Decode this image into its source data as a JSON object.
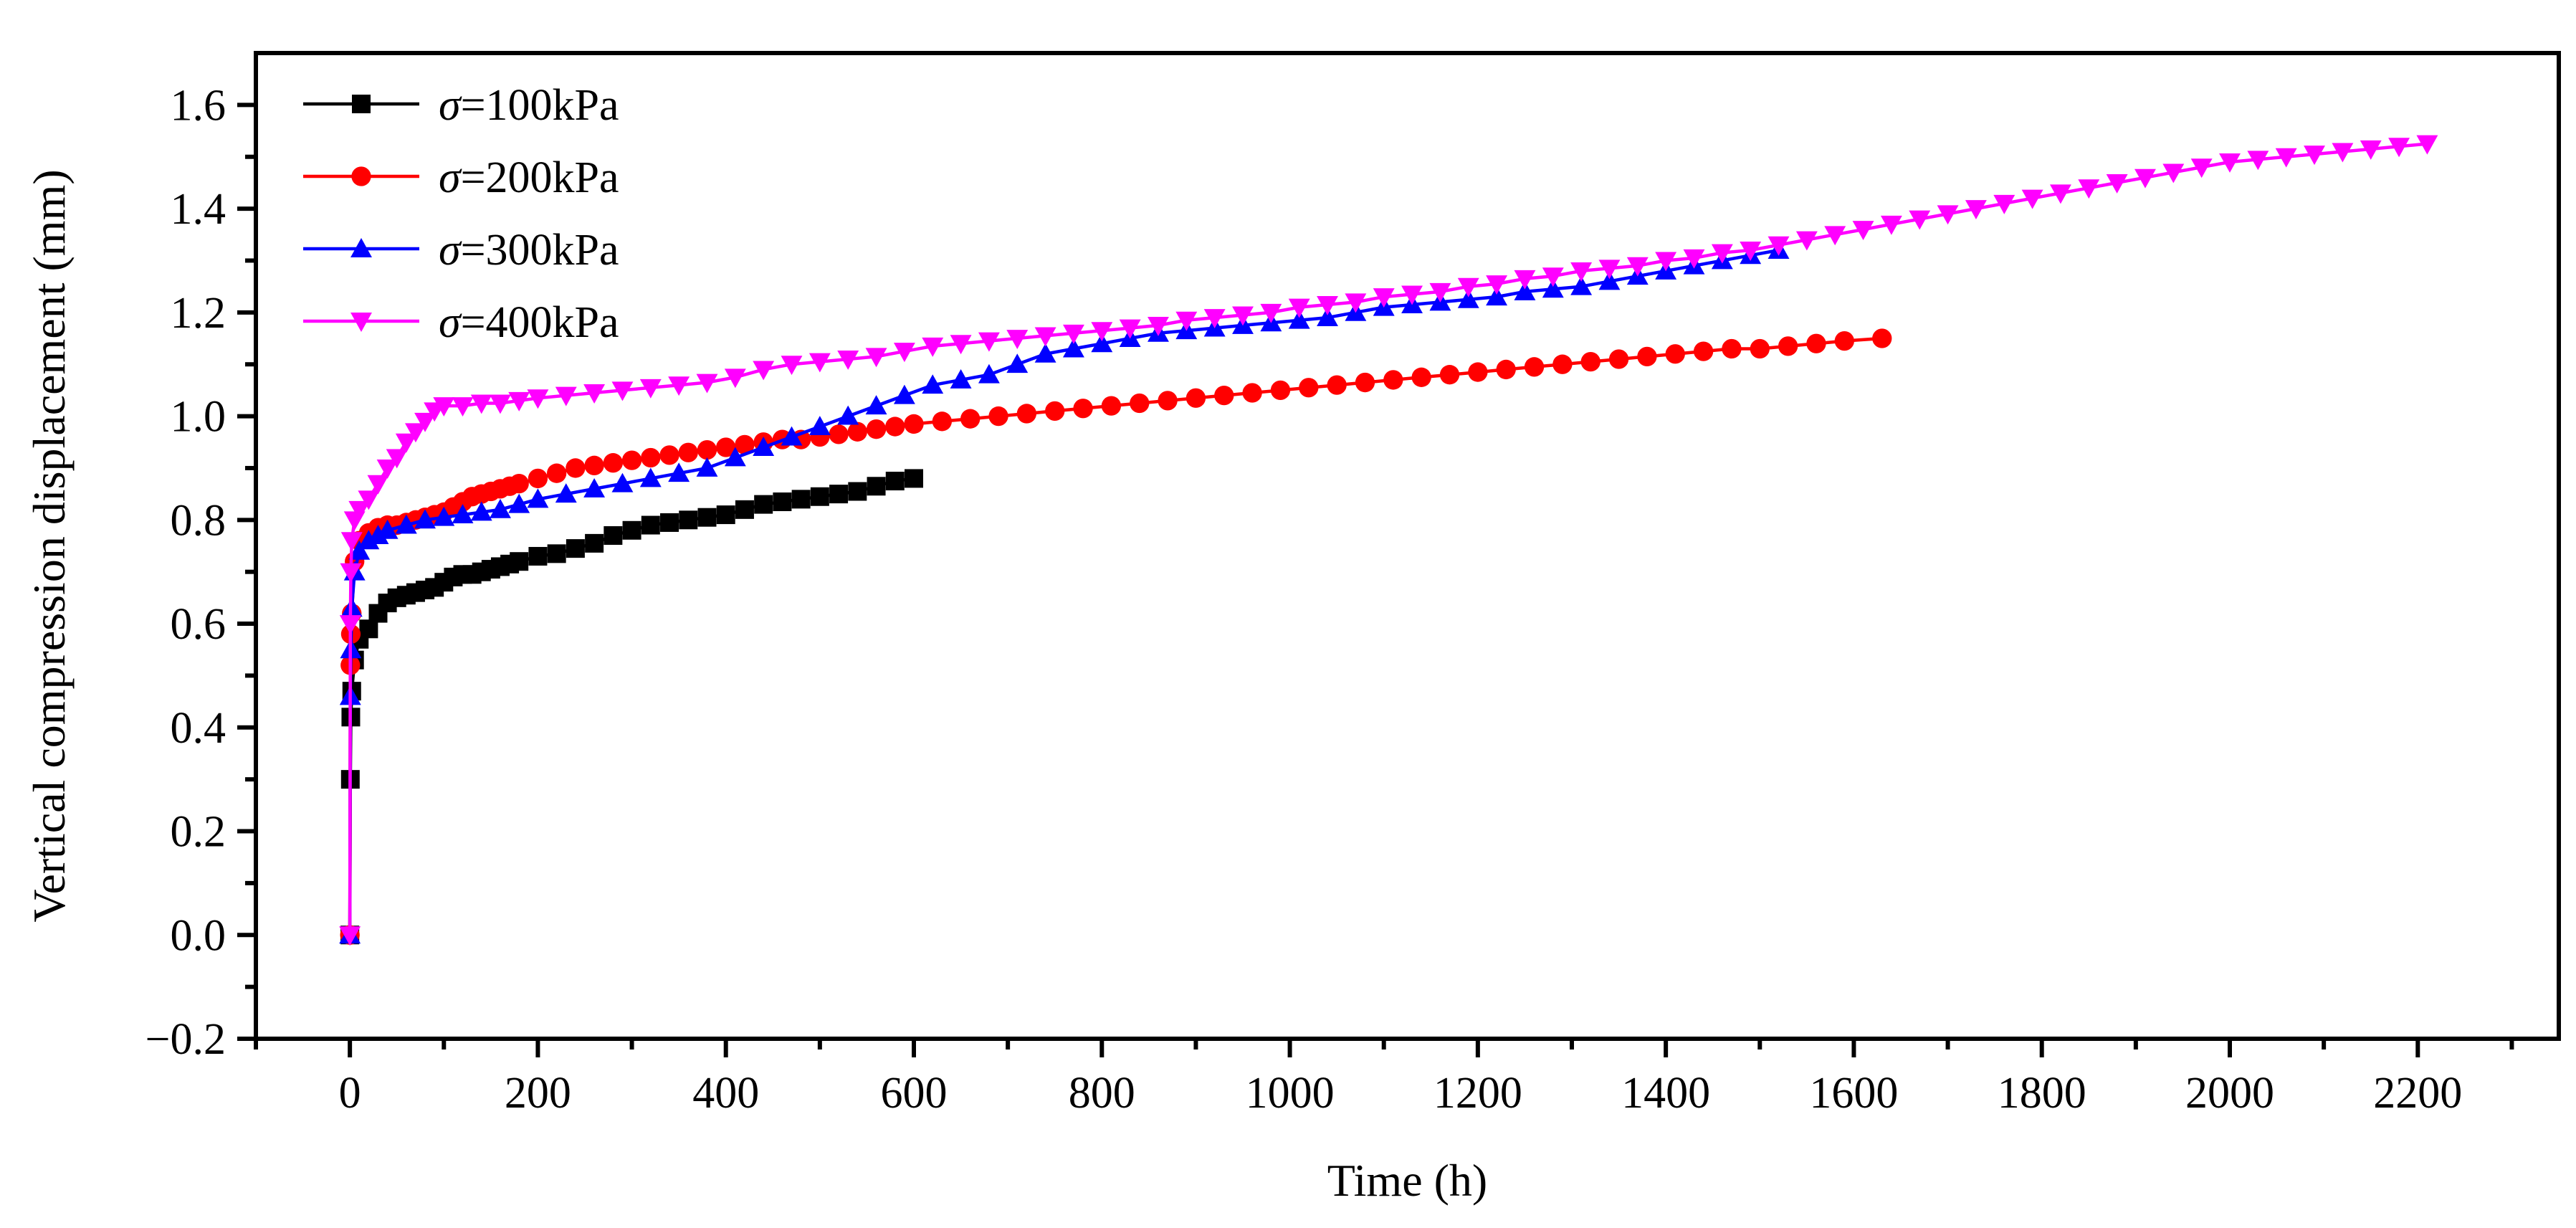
{
  "chart_data": {
    "type": "line",
    "title": "",
    "xlabel": "Time (h)",
    "ylabel": "Vertical compression displacement (mm)",
    "xlim": [
      -100,
      2350
    ],
    "ylim": [
      -0.2,
      1.7
    ],
    "x_ticks": [
      0,
      200,
      400,
      600,
      800,
      1000,
      1200,
      1400,
      1600,
      1800,
      2000,
      2200
    ],
    "x_tick_labels": [
      "0",
      "200",
      "400",
      "600",
      "800",
      "1000",
      "1200",
      "1400",
      "1600",
      "1800",
      "2000",
      "2200"
    ],
    "y_ticks": [
      -0.2,
      0.0,
      0.2,
      0.4,
      0.6,
      0.8,
      1.0,
      1.2,
      1.4,
      1.6
    ],
    "y_tick_labels": [
      "−0.2",
      "0.0",
      "0.2",
      "0.4",
      "0.6",
      "0.8",
      "1.0",
      "1.2",
      "1.4",
      "1.6"
    ],
    "grid": false,
    "legend_position": "top-left",
    "series": [
      {
        "name": "σ=100kPa",
        "symbol": "σ",
        "label_rest": "=100kPa",
        "color": "#000000",
        "marker": "square",
        "x": [
          0,
          0.5,
          1,
          2,
          5,
          10,
          20,
          30,
          40,
          50,
          60,
          70,
          80,
          90,
          100,
          110,
          120,
          130,
          140,
          150,
          160,
          170,
          180,
          200,
          220,
          240,
          260,
          280,
          300,
          320,
          340,
          360,
          380,
          400,
          420,
          440,
          460,
          480,
          500,
          520,
          540,
          560,
          580,
          600
        ],
        "y": [
          0,
          0.3,
          0.42,
          0.47,
          0.53,
          0.57,
          0.59,
          0.62,
          0.64,
          0.65,
          0.655,
          0.66,
          0.665,
          0.67,
          0.68,
          0.69,
          0.695,
          0.695,
          0.7,
          0.705,
          0.71,
          0.715,
          0.72,
          0.73,
          0.735,
          0.745,
          0.755,
          0.77,
          0.78,
          0.79,
          0.795,
          0.8,
          0.805,
          0.81,
          0.82,
          0.83,
          0.835,
          0.84,
          0.845,
          0.85,
          0.855,
          0.865,
          0.875,
          0.88
        ]
      },
      {
        "name": "σ=200kPa",
        "symbol": "σ",
        "label_rest": "=200kPa",
        "color": "#ff0000",
        "marker": "circle",
        "x": [
          0,
          0.5,
          1,
          2,
          5,
          10,
          20,
          30,
          40,
          50,
          60,
          70,
          80,
          90,
          100,
          110,
          120,
          130,
          140,
          150,
          160,
          170,
          180,
          200,
          220,
          240,
          260,
          280,
          300,
          320,
          340,
          360,
          380,
          400,
          420,
          440,
          460,
          480,
          500,
          520,
          540,
          560,
          580,
          600,
          630,
          660,
          690,
          720,
          750,
          780,
          810,
          840,
          870,
          900,
          930,
          960,
          990,
          1020,
          1050,
          1080,
          1110,
          1140,
          1170,
          1200,
          1230,
          1260,
          1290,
          1320,
          1350,
          1380,
          1410,
          1440,
          1470,
          1500,
          1530,
          1560,
          1590,
          1630
        ],
        "y": [
          0,
          0.52,
          0.58,
          0.62,
          0.72,
          0.76,
          0.775,
          0.785,
          0.79,
          0.79,
          0.795,
          0.8,
          0.805,
          0.81,
          0.815,
          0.825,
          0.835,
          0.845,
          0.85,
          0.855,
          0.86,
          0.865,
          0.87,
          0.88,
          0.89,
          0.9,
          0.905,
          0.91,
          0.915,
          0.92,
          0.925,
          0.93,
          0.935,
          0.94,
          0.945,
          0.95,
          0.955,
          0.955,
          0.96,
          0.965,
          0.97,
          0.975,
          0.98,
          0.985,
          0.99,
          0.995,
          1.0,
          1.005,
          1.01,
          1.015,
          1.02,
          1.025,
          1.03,
          1.035,
          1.04,
          1.045,
          1.05,
          1.055,
          1.06,
          1.065,
          1.07,
          1.075,
          1.08,
          1.085,
          1.09,
          1.095,
          1.1,
          1.105,
          1.11,
          1.115,
          1.12,
          1.125,
          1.13,
          1.13,
          1.135,
          1.14,
          1.145,
          1.15
        ]
      },
      {
        "name": "σ=300kPa",
        "symbol": "σ",
        "label_rest": "=300kPa",
        "color": "#0000ff",
        "marker": "triangle-up",
        "x": [
          0,
          0.5,
          1,
          2,
          5,
          10,
          20,
          30,
          40,
          60,
          80,
          100,
          120,
          140,
          160,
          180,
          200,
          230,
          260,
          290,
          320,
          350,
          380,
          410,
          440,
          470,
          500,
          530,
          560,
          590,
          620,
          650,
          680,
          710,
          740,
          770,
          800,
          830,
          860,
          890,
          920,
          950,
          980,
          1010,
          1040,
          1070,
          1100,
          1130,
          1160,
          1190,
          1220,
          1250,
          1280,
          1310,
          1340,
          1370,
          1400,
          1430,
          1460,
          1490,
          1520
        ],
        "y": [
          0,
          0.46,
          0.55,
          0.63,
          0.7,
          0.74,
          0.76,
          0.77,
          0.78,
          0.79,
          0.8,
          0.805,
          0.81,
          0.815,
          0.82,
          0.83,
          0.84,
          0.85,
          0.86,
          0.87,
          0.88,
          0.89,
          0.9,
          0.92,
          0.94,
          0.96,
          0.98,
          1.0,
          1.02,
          1.04,
          1.06,
          1.07,
          1.08,
          1.1,
          1.12,
          1.13,
          1.14,
          1.15,
          1.16,
          1.165,
          1.17,
          1.175,
          1.18,
          1.185,
          1.19,
          1.2,
          1.21,
          1.215,
          1.22,
          1.225,
          1.23,
          1.24,
          1.245,
          1.25,
          1.26,
          1.27,
          1.28,
          1.29,
          1.3,
          1.31,
          1.32
        ]
      },
      {
        "name": "σ=400kPa",
        "symbol": "σ",
        "label_rest": "=400kPa",
        "color": "#ff00ff",
        "marker": "triangle-down",
        "x": [
          0,
          0.5,
          1,
          2,
          5,
          10,
          20,
          30,
          40,
          50,
          60,
          70,
          80,
          90,
          100,
          120,
          140,
          160,
          180,
          200,
          230,
          260,
          290,
          320,
          350,
          380,
          410,
          440,
          470,
          500,
          530,
          560,
          590,
          620,
          650,
          680,
          710,
          740,
          770,
          800,
          830,
          860,
          890,
          920,
          950,
          980,
          1010,
          1040,
          1070,
          1100,
          1130,
          1160,
          1190,
          1220,
          1250,
          1280,
          1310,
          1340,
          1370,
          1400,
          1430,
          1460,
          1490,
          1520,
          1550,
          1580,
          1610,
          1640,
          1670,
          1700,
          1730,
          1760,
          1790,
          1820,
          1850,
          1880,
          1910,
          1940,
          1970,
          2000,
          2030,
          2060,
          2090,
          2120,
          2150,
          2180,
          2210
        ],
        "y": [
          0,
          0.6,
          0.7,
          0.76,
          0.8,
          0.82,
          0.84,
          0.87,
          0.9,
          0.92,
          0.95,
          0.97,
          0.99,
          1.01,
          1.02,
          1.02,
          1.025,
          1.025,
          1.03,
          1.035,
          1.04,
          1.045,
          1.05,
          1.055,
          1.06,
          1.065,
          1.075,
          1.09,
          1.1,
          1.105,
          1.11,
          1.115,
          1.125,
          1.135,
          1.14,
          1.145,
          1.15,
          1.155,
          1.16,
          1.165,
          1.17,
          1.175,
          1.185,
          1.19,
          1.195,
          1.2,
          1.21,
          1.215,
          1.22,
          1.23,
          1.235,
          1.24,
          1.25,
          1.255,
          1.265,
          1.27,
          1.28,
          1.285,
          1.29,
          1.3,
          1.305,
          1.315,
          1.32,
          1.33,
          1.34,
          1.35,
          1.36,
          1.37,
          1.38,
          1.39,
          1.4,
          1.41,
          1.42,
          1.43,
          1.44,
          1.45,
          1.46,
          1.47,
          1.48,
          1.49,
          1.495,
          1.5,
          1.505,
          1.51,
          1.515,
          1.52,
          1.525
        ]
      }
    ]
  }
}
